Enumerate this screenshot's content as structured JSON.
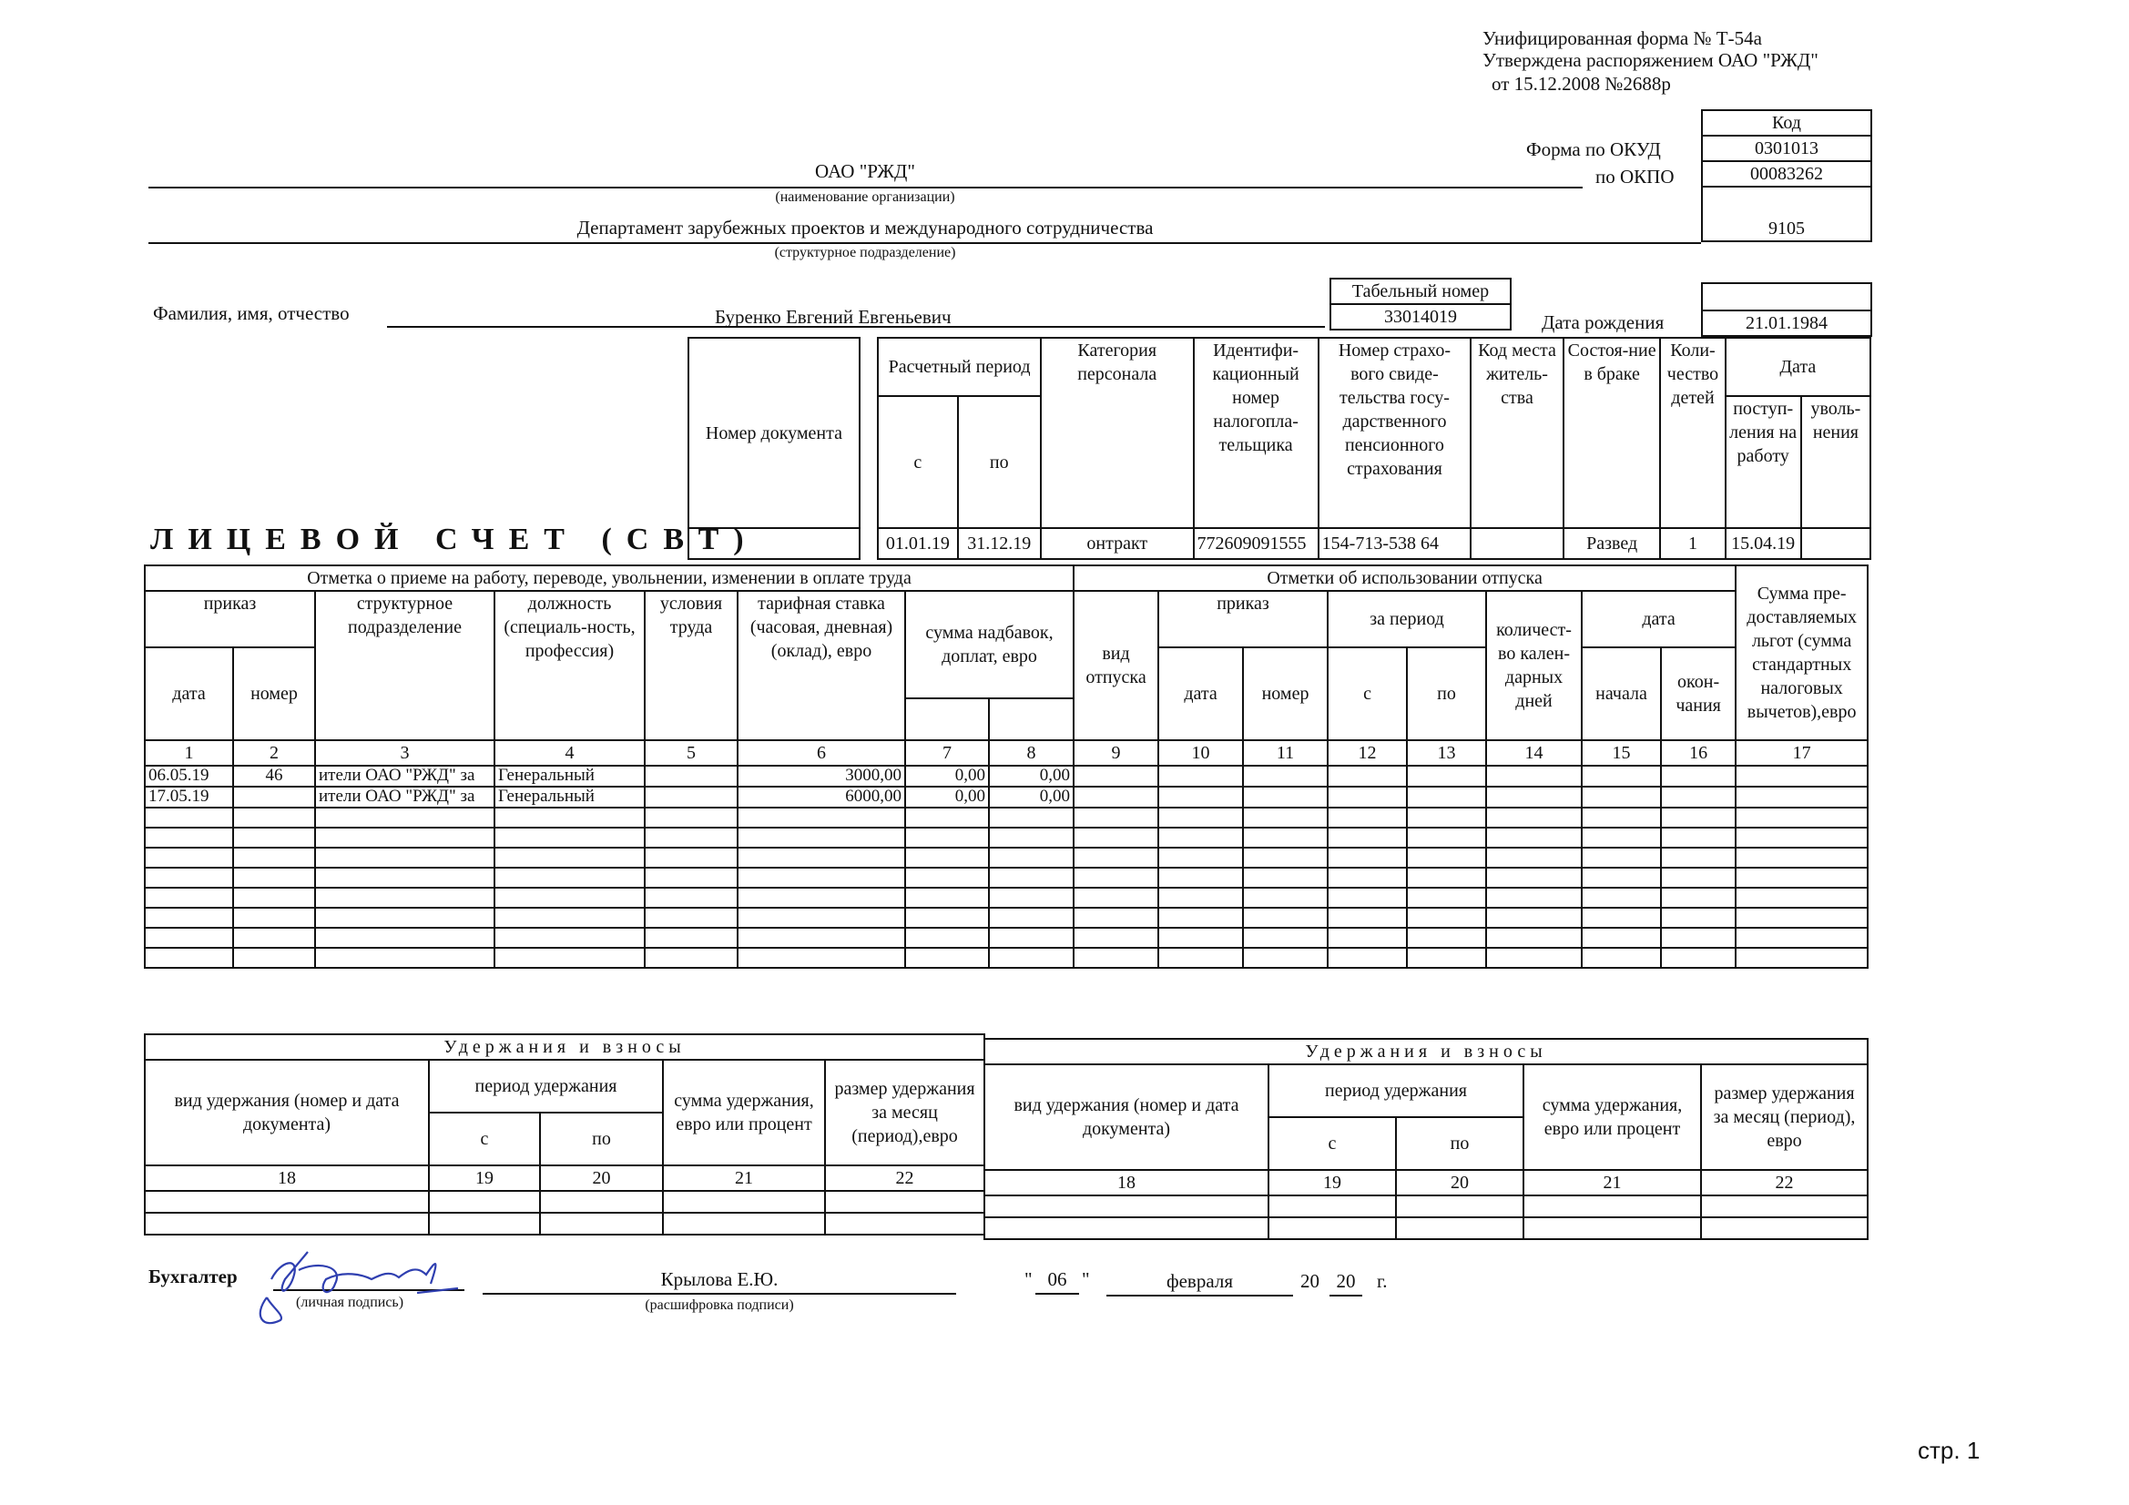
{
  "header": {
    "form_line1": "Унифицированная форма № Т-54а",
    "form_line2": "Утверждена распоряжением ОАО \"РЖД\"",
    "form_line3": "от  15.12.2008 №2688р"
  },
  "codes": {
    "kod_label": "Код",
    "okud_label": "Форма по ОКУД",
    "okud_value": "0301013",
    "okpo_label": "по ОКПО",
    "okpo_value": "00083262",
    "sub_code": "9105"
  },
  "org": {
    "name": "ОАО \"РЖД\"",
    "name_caption": "(наименование организации)",
    "department": "Департамент зарубежных проектов и международного сотрудничества",
    "department_caption": "(структурное подразделение)"
  },
  "person": {
    "fio_label": "Фамилия, имя, отчество",
    "fio_value": "Буренко Евгений Евгеньевич",
    "tab_label": "Табельный номер",
    "tab_value": "33014019",
    "birth_label": "Дата рождения",
    "birth_value": "21.01.1984"
  },
  "title": "ЛИЦЕВОЙ СЧЕТ (СВТ)",
  "info": {
    "headers": {
      "doc": "Номер документа",
      "period": "Расчетный период",
      "from": "с",
      "to": "по",
      "category": "Категория персонала",
      "inn": "Идентифи-кационный номер налогопла-тельщика",
      "snils": "Номер страхо-вого свиде-тельства госу-дарственного пенсионного страхования",
      "residence": "Код места житель-ства",
      "marital": "Состоя-ние в браке",
      "children": "Коли-чество детей",
      "date": "Дата",
      "hire": "поступ-ления на работу",
      "fire": "уволь-нения"
    },
    "values": {
      "doc": "",
      "from": "01.01.19",
      "to": "31.12.19",
      "category": "онтракт",
      "inn": "772609091555",
      "snils": "154-713-538 64",
      "residence": "",
      "marital": "Развед",
      "children": "1",
      "hire": "15.04.19",
      "fire": ""
    }
  },
  "main_table": {
    "left_header": "Отметка о приеме на работу, переводе, увольнении, изменении в оплате труда",
    "right_header": "Отметки об использовании отпуска",
    "h": {
      "order": "приказ",
      "date": "дата",
      "number": "номер",
      "struct": "структурное подразделение",
      "position": "должность (специаль-ность, профессия)",
      "conditions": "условия труда",
      "rate": "тарифная ставка (часовая, дневная) (оклад), евро",
      "bonus": "сумма надбавок, доплат, евро",
      "vac_type": "вид отпуска",
      "vac_order": "приказ",
      "vac_date": "дата",
      "vac_number": "номер",
      "vac_period": "за период",
      "vac_from": "с",
      "vac_to": "по",
      "vac_days": "количест-во кален-дарных дней",
      "vac_dates": "дата",
      "vac_start": "начала",
      "vac_end": "окон-чания",
      "benefits": "Сумма пре-доставляемых льгот (сумма стандартных налоговых вычетов),евро"
    },
    "col_numbers": [
      "1",
      "2",
      "3",
      "4",
      "5",
      "6",
      "7",
      "8",
      "9",
      "10",
      "11",
      "12",
      "13",
      "14",
      "15",
      "16",
      "17"
    ],
    "rows": [
      [
        "06.05.19",
        "46",
        "ители ОАО \"РЖД\" за",
        "Генеральный",
        "",
        "3000,00",
        "0,00",
        "0,00",
        "",
        "",
        "",
        "",
        "",
        "",
        "",
        "",
        ""
      ],
      [
        "17.05.19",
        "",
        "ители ОАО \"РЖД\" за",
        "Генеральный",
        "",
        "6000,00",
        "0,00",
        "0,00",
        "",
        "",
        "",
        "",
        "",
        "",
        "",
        "",
        ""
      ],
      [
        "",
        "",
        "",
        "",
        "",
        "",
        "",
        "",
        "",
        "",
        "",
        "",
        "",
        "",
        "",
        "",
        ""
      ],
      [
        "",
        "",
        "",
        "",
        "",
        "",
        "",
        "",
        "",
        "",
        "",
        "",
        "",
        "",
        "",
        "",
        ""
      ],
      [
        "",
        "",
        "",
        "",
        "",
        "",
        "",
        "",
        "",
        "",
        "",
        "",
        "",
        "",
        "",
        "",
        ""
      ],
      [
        "",
        "",
        "",
        "",
        "",
        "",
        "",
        "",
        "",
        "",
        "",
        "",
        "",
        "",
        "",
        "",
        ""
      ],
      [
        "",
        "",
        "",
        "",
        "",
        "",
        "",
        "",
        "",
        "",
        "",
        "",
        "",
        "",
        "",
        "",
        ""
      ],
      [
        "",
        "",
        "",
        "",
        "",
        "",
        "",
        "",
        "",
        "",
        "",
        "",
        "",
        "",
        "",
        "",
        ""
      ],
      [
        "",
        "",
        "",
        "",
        "",
        "",
        "",
        "",
        "",
        "",
        "",
        "",
        "",
        "",
        "",
        "",
        ""
      ],
      [
        "",
        "",
        "",
        "",
        "",
        "",
        "",
        "",
        "",
        "",
        "",
        "",
        "",
        "",
        "",
        "",
        ""
      ]
    ]
  },
  "deductions": {
    "header": "Удержания и взносы",
    "type": "вид удержания (номер и дата документа)",
    "period": "период удержания",
    "from": "с",
    "to": "по",
    "sum": "сумма удержания, евро или процент",
    "size_left": "размер удержания за месяц (период),евро",
    "size_right": "размер удержания за месяц (период), евро",
    "nums": [
      "18",
      "19",
      "20",
      "21",
      "22"
    ]
  },
  "footer": {
    "accountant_label": "Бухгалтер",
    "signature_caption": "(личная подпись)",
    "name": "Крылова Е.Ю.",
    "name_caption": "(расшифровка подписи)",
    "day": "06",
    "month": "февраля",
    "year_prefix": "20",
    "year_suffix": "20",
    "year_unit": "г.",
    "quote": "\""
  },
  "page_label": "стр. 1"
}
